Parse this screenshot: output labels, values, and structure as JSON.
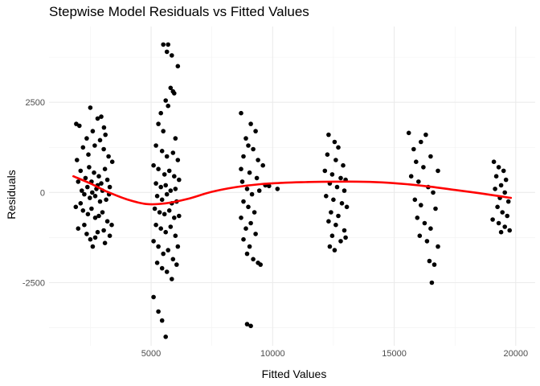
{
  "chart_data": {
    "type": "scatter",
    "title": "Stepwise Model Residuals vs Fitted Values",
    "xlabel": "Fitted Values",
    "ylabel": "Residuals",
    "xlim": [
      800,
      20800
    ],
    "ylim": [
      -4250,
      4600
    ],
    "x_ticks": [
      5000,
      10000,
      15000,
      20000
    ],
    "x_tick_labels": [
      "5000",
      "10000",
      "15000",
      "20000"
    ],
    "y_ticks": [
      -2500,
      0,
      2500
    ],
    "y_tick_labels": [
      "-2500",
      "0",
      "2500"
    ],
    "grid": true,
    "legend": "none",
    "point_color": "#000000",
    "trend_color": "#ff0000",
    "trend_line": {
      "x": [
        1800,
        2500,
        3200,
        4000,
        4800,
        5600,
        6500,
        7500,
        8500,
        9500,
        10500,
        11500,
        12500,
        13500,
        14500,
        15500,
        16500,
        17500,
        18500,
        19500,
        19800
      ],
      "y": [
        450,
        250,
        20,
        -190,
        -320,
        -300,
        -180,
        20,
        150,
        230,
        270,
        290,
        300,
        300,
        280,
        230,
        160,
        70,
        -20,
        -120,
        -150
      ]
    },
    "series": [
      {
        "values": [
          [
            1920,
            1900
          ],
          [
            2050,
            1850
          ],
          [
            2500,
            2350
          ],
          [
            2800,
            2050
          ],
          [
            2950,
            2100
          ],
          [
            3120,
            1600
          ],
          [
            3060,
            1800
          ],
          [
            2350,
            1500
          ],
          [
            2600,
            1700
          ],
          [
            2200,
            1250
          ],
          [
            2420,
            1050
          ],
          [
            2680,
            1300
          ],
          [
            2900,
            1450
          ],
          [
            3050,
            1200
          ],
          [
            3250,
            1000
          ],
          [
            3400,
            850
          ],
          [
            1950,
            900
          ],
          [
            2100,
            600
          ],
          [
            2300,
            400
          ],
          [
            2450,
            700
          ],
          [
            2550,
            300
          ],
          [
            2650,
            550
          ],
          [
            2750,
            100
          ],
          [
            2850,
            450
          ],
          [
            2950,
            250
          ],
          [
            3100,
            650
          ],
          [
            3200,
            350
          ],
          [
            3300,
            150
          ],
          [
            2000,
            300
          ],
          [
            2150,
            50
          ],
          [
            2250,
            -50
          ],
          [
            2380,
            150
          ],
          [
            2480,
            -150
          ],
          [
            2580,
            0
          ],
          [
            2700,
            -100
          ],
          [
            2800,
            200
          ],
          [
            2900,
            -250
          ],
          [
            3000,
            50
          ],
          [
            3150,
            -200
          ],
          [
            3270,
            -50
          ],
          [
            1900,
            -400
          ],
          [
            2100,
            -300
          ],
          [
            2200,
            -500
          ],
          [
            2400,
            -600
          ],
          [
            2550,
            -450
          ],
          [
            2700,
            -700
          ],
          [
            2850,
            -650
          ],
          [
            3000,
            -550
          ],
          [
            3200,
            -800
          ],
          [
            3380,
            -900
          ],
          [
            2000,
            -1000
          ],
          [
            2250,
            -900
          ],
          [
            2500,
            -1300
          ],
          [
            2600,
            -1500
          ],
          [
            2800,
            -1100
          ],
          [
            3050,
            -1050
          ],
          [
            3300,
            -1200
          ],
          [
            3100,
            -1400
          ],
          [
            2350,
            -1150
          ],
          [
            2700,
            -1250
          ],
          [
            5100,
            -2900
          ],
          [
            5300,
            -3300
          ],
          [
            5450,
            -3550
          ],
          [
            5600,
            -4000
          ],
          [
            5500,
            4100
          ],
          [
            5700,
            4100
          ],
          [
            5650,
            3900
          ],
          [
            5850,
            3800
          ],
          [
            6100,
            3500
          ],
          [
            5800,
            2900
          ],
          [
            5900,
            2800
          ],
          [
            5950,
            2750
          ],
          [
            5600,
            2550
          ],
          [
            5700,
            2400
          ],
          [
            5400,
            2200
          ],
          [
            5300,
            1900
          ],
          [
            5500,
            1700
          ],
          [
            6000,
            1500
          ],
          [
            5200,
            1300
          ],
          [
            5450,
            1150
          ],
          [
            5650,
            1000
          ],
          [
            5900,
            1100
          ],
          [
            6100,
            900
          ],
          [
            5100,
            750
          ],
          [
            5300,
            650
          ],
          [
            5550,
            500
          ],
          [
            5750,
            600
          ],
          [
            5950,
            450
          ],
          [
            6150,
            350
          ],
          [
            5200,
            250
          ],
          [
            5400,
            150
          ],
          [
            5600,
            200
          ],
          [
            5800,
            50
          ],
          [
            6000,
            100
          ],
          [
            5250,
            -100
          ],
          [
            5450,
            -200
          ],
          [
            5650,
            -50
          ],
          [
            5850,
            -300
          ],
          [
            6050,
            -250
          ],
          [
            5150,
            -450
          ],
          [
            5350,
            -550
          ],
          [
            5550,
            -600
          ],
          [
            5750,
            -500
          ],
          [
            5950,
            -700
          ],
          [
            6150,
            -650
          ],
          [
            5200,
            -900
          ],
          [
            5400,
            -1000
          ],
          [
            5600,
            -1100
          ],
          [
            5800,
            -950
          ],
          [
            6000,
            -1200
          ],
          [
            5100,
            -1350
          ],
          [
            5300,
            -1500
          ],
          [
            5500,
            -1700
          ],
          [
            5700,
            -1600
          ],
          [
            5900,
            -1850
          ],
          [
            6100,
            -1500
          ],
          [
            5250,
            -1950
          ],
          [
            5450,
            -2100
          ],
          [
            5650,
            -2200
          ],
          [
            5850,
            -2400
          ],
          [
            6050,
            -2000
          ],
          [
            8700,
            2200
          ],
          [
            9100,
            1900
          ],
          [
            9300,
            1700
          ],
          [
            8900,
            1500
          ],
          [
            9000,
            1300
          ],
          [
            9200,
            1200
          ],
          [
            8800,
            1000
          ],
          [
            9400,
            900
          ],
          [
            9600,
            750
          ],
          [
            8700,
            650
          ],
          [
            9050,
            550
          ],
          [
            9350,
            400
          ],
          [
            9700,
            200
          ],
          [
            9850,
            180
          ],
          [
            10200,
            100
          ],
          [
            8750,
            300
          ],
          [
            8950,
            100
          ],
          [
            9150,
            -50
          ],
          [
            9450,
            50
          ],
          [
            8800,
            -250
          ],
          [
            9000,
            -400
          ],
          [
            9250,
            -550
          ],
          [
            8700,
            -700
          ],
          [
            9100,
            -850
          ],
          [
            8900,
            -1000
          ],
          [
            9300,
            -1150
          ],
          [
            8800,
            -1300
          ],
          [
            9050,
            -1500
          ],
          [
            8950,
            -1700
          ],
          [
            9200,
            -1850
          ],
          [
            9400,
            -1950
          ],
          [
            9500,
            -2000
          ],
          [
            8950,
            -3650
          ],
          [
            9100,
            -3700
          ],
          [
            12300,
            1600
          ],
          [
            12550,
            1400
          ],
          [
            12700,
            1250
          ],
          [
            12250,
            1050
          ],
          [
            12600,
            900
          ],
          [
            12900,
            750
          ],
          [
            12150,
            600
          ],
          [
            12450,
            500
          ],
          [
            12800,
            400
          ],
          [
            13000,
            350
          ],
          [
            12350,
            250
          ],
          [
            12650,
            150
          ],
          [
            12950,
            50
          ],
          [
            12200,
            -100
          ],
          [
            12500,
            -200
          ],
          [
            12850,
            -300
          ],
          [
            13050,
            -400
          ],
          [
            12400,
            -550
          ],
          [
            12700,
            -650
          ],
          [
            12300,
            -800
          ],
          [
            12600,
            -900
          ],
          [
            12950,
            -1050
          ],
          [
            12450,
            -1200
          ],
          [
            12800,
            -1350
          ],
          [
            12350,
            -1500
          ],
          [
            12550,
            -1600
          ],
          [
            13000,
            -1250
          ],
          [
            15600,
            1650
          ],
          [
            16300,
            1600
          ],
          [
            16100,
            1400
          ],
          [
            15800,
            1200
          ],
          [
            16500,
            1000
          ],
          [
            15900,
            850
          ],
          [
            16200,
            700
          ],
          [
            16800,
            600
          ],
          [
            15700,
            450
          ],
          [
            16000,
            300
          ],
          [
            16400,
            150
          ],
          [
            16600,
            0
          ],
          [
            15850,
            -200
          ],
          [
            16100,
            -350
          ],
          [
            16700,
            -450
          ],
          [
            15950,
            -700
          ],
          [
            16250,
            -850
          ],
          [
            16500,
            -1000
          ],
          [
            16050,
            -1200
          ],
          [
            16350,
            -1350
          ],
          [
            16800,
            -1500
          ],
          [
            16450,
            -1900
          ],
          [
            16650,
            -2000
          ],
          [
            16550,
            -2500
          ],
          [
            19100,
            850
          ],
          [
            19300,
            700
          ],
          [
            19500,
            600
          ],
          [
            19200,
            450
          ],
          [
            19600,
            350
          ],
          [
            19400,
            200
          ],
          [
            19150,
            100
          ],
          [
            19550,
            0
          ],
          [
            19350,
            -150
          ],
          [
            19700,
            -250
          ],
          [
            19250,
            -400
          ],
          [
            19450,
            -550
          ],
          [
            19650,
            -650
          ],
          [
            19050,
            -750
          ],
          [
            19300,
            -850
          ],
          [
            19550,
            -950
          ],
          [
            19400,
            -1100
          ],
          [
            19750,
            -1050
          ]
        ]
      }
    ]
  }
}
